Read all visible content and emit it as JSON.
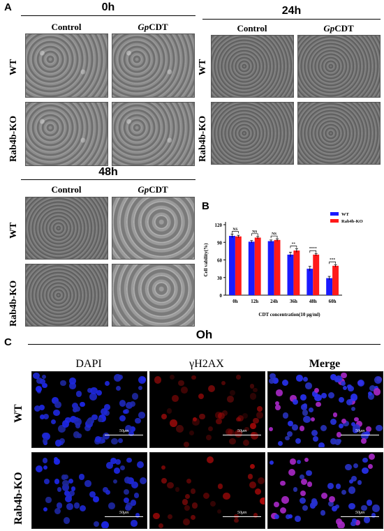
{
  "panel_a": {
    "letter": "A",
    "blocks": [
      {
        "time": "0h",
        "columns": [
          {
            "pre": "",
            "italic": "",
            "post": "Control"
          },
          {
            "pre": "",
            "italic": "Gp",
            "post": "CDT"
          }
        ],
        "rows": [
          "WT",
          "Rab4b-KO"
        ]
      },
      {
        "time": "24h",
        "columns": [
          {
            "pre": "",
            "italic": "",
            "post": "Control"
          },
          {
            "pre": "",
            "italic": "Gp",
            "post": "CDT"
          }
        ],
        "rows": [
          "WT",
          "Rab4b-KO"
        ]
      },
      {
        "time": "48h",
        "columns": [
          {
            "pre": "",
            "italic": "",
            "post": "Control"
          },
          {
            "pre": "",
            "italic": "Gp",
            "post": "CDT"
          }
        ],
        "rows": [
          "WT",
          "Rab4b-KO"
        ]
      }
    ]
  },
  "panel_b": {
    "letter": "B",
    "chart_data": {
      "type": "bar",
      "categories": [
        "0h",
        "12h",
        "24h",
        "36h",
        "48h",
        "60h"
      ],
      "series": [
        {
          "name": "WT",
          "color": "#1a1aff",
          "values": [
            101,
            91,
            92,
            69,
            45,
            29
          ],
          "errors": [
            3,
            2,
            2,
            4,
            4,
            3
          ]
        },
        {
          "name": "Rab4b-KO",
          "color": "#ff1a1a",
          "values": [
            100,
            98,
            94,
            76,
            69,
            50
          ],
          "errors": [
            2,
            2,
            2,
            3,
            2,
            2
          ]
        }
      ],
      "significance": [
        "NS",
        "NS",
        "NS",
        "**",
        "****",
        "***"
      ],
      "ylabel": "Cell vability(%)",
      "xlabel": "CDT concentration(10 μg/ml)",
      "ylim": [
        0,
        120
      ],
      "yticks": [
        0,
        30,
        60,
        90,
        120
      ],
      "legend_position": "top-right"
    }
  },
  "panel_c": {
    "letter": "C",
    "title": "Oh",
    "columns": [
      "DAPI",
      "γH2AX",
      "Merge"
    ],
    "rows": [
      "WT",
      "Rab4b-KO"
    ],
    "scale_bar": "50μm"
  }
}
